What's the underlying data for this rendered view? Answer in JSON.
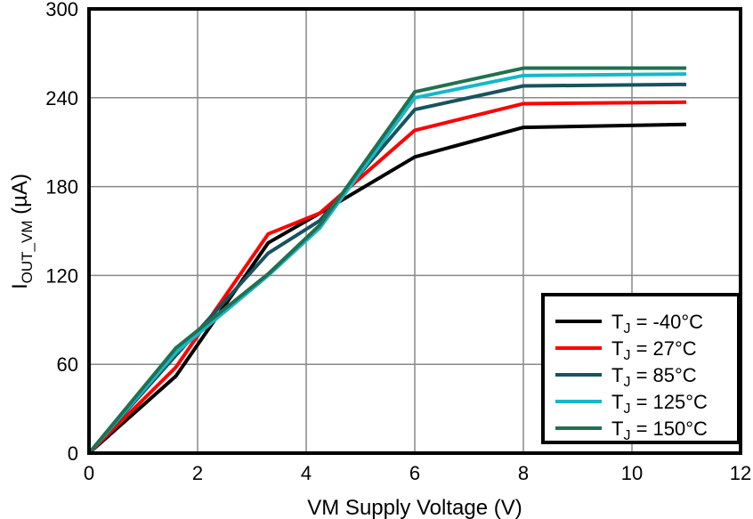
{
  "chart_data": {
    "type": "line",
    "title": "",
    "xlabel": "VM Supply Voltage (V)",
    "ylabel": {
      "main": "I",
      "sub": "OUT_VM",
      "unit": " (µA)"
    },
    "xlim": [
      0,
      12
    ],
    "ylim": [
      0,
      300
    ],
    "xticks": [
      0,
      2,
      4,
      6,
      8,
      10,
      12
    ],
    "yticks": [
      0,
      60,
      120,
      180,
      240,
      300
    ],
    "grid": true,
    "legend_position": "bottom-right",
    "x": [
      0,
      1.6,
      3.3,
      4.25,
      6,
      8,
      11
    ],
    "series": [
      {
        "name": "T_J = -40°C",
        "label_main": "T",
        "label_sub": "J",
        "label_rest": " = -40°C",
        "color": "#000000",
        "values": [
          0,
          52,
          142,
          162,
          200,
          220,
          222
        ]
      },
      {
        "name": "T_J = 27°C",
        "label_main": "T",
        "label_sub": "J",
        "label_rest": " = 27°C",
        "color": "#ff0000",
        "values": [
          0,
          58,
          148,
          162,
          218,
          236,
          237
        ]
      },
      {
        "name": "T_J = 85°C",
        "label_main": "T",
        "label_sub": "J",
        "label_rest": " = 85°C",
        "color": "#18535f",
        "values": [
          0,
          66,
          135,
          157,
          232,
          248,
          249
        ]
      },
      {
        "name": "T_J = 125°C",
        "label_main": "T",
        "label_sub": "J",
        "label_rest": " = 125°C",
        "color": "#16b8c8",
        "values": [
          0,
          68,
          120,
          152,
          240,
          255,
          256
        ]
      },
      {
        "name": "T_J = 150°C",
        "label_main": "T",
        "label_sub": "J",
        "label_rest": " = 150°C",
        "color": "#227050",
        "values": [
          0,
          71,
          121,
          154,
          244,
          260,
          260
        ]
      }
    ]
  }
}
